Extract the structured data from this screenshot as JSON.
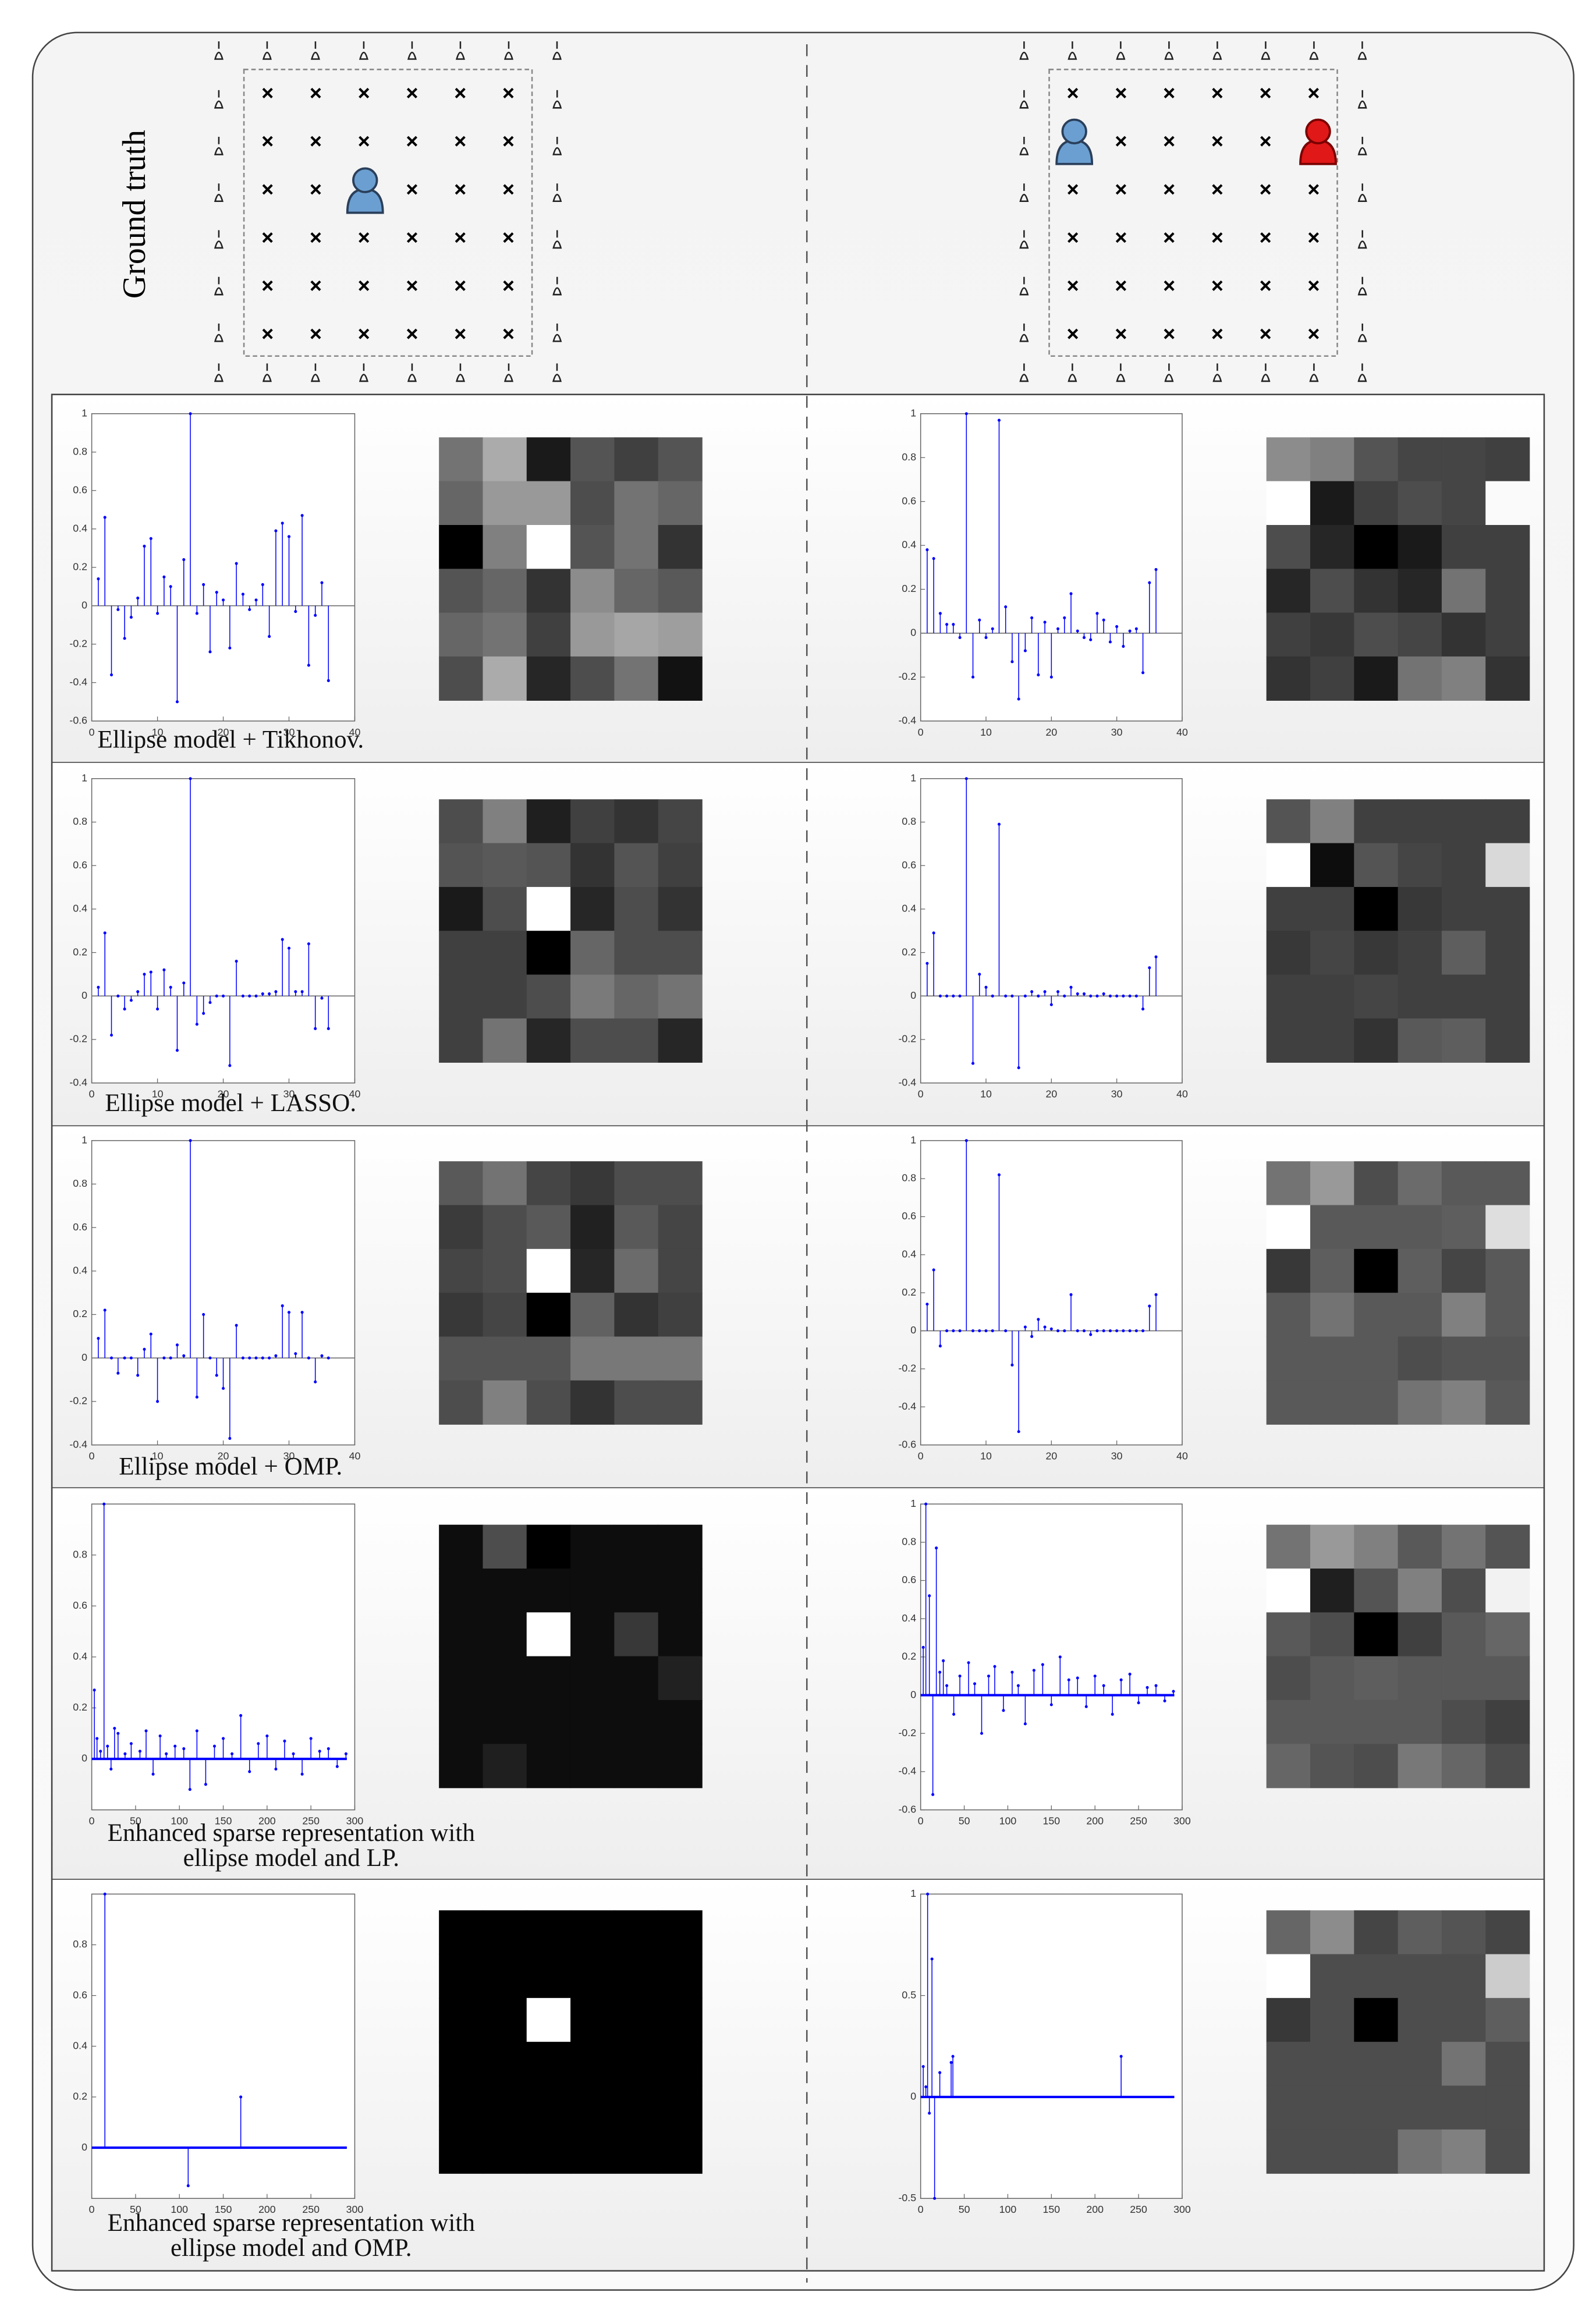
{
  "ground_truth": {
    "label": "Ground truth"
  },
  "captions": [
    [
      "Ellipse model + Tikhonov."
    ],
    [
      "Ellipse model + LASSO."
    ],
    [
      "Ellipse model + OMP."
    ],
    [
      "Enhanced sparse representation with",
      "ellipse model and LP."
    ],
    [
      "Enhanced sparse representation with",
      "ellipse model and OMP."
    ]
  ],
  "chart_data": [
    {
      "type": "stem",
      "color": "#0000ff",
      "xlim": [
        0,
        40
      ],
      "xticks": [
        0,
        10,
        20,
        30,
        40
      ],
      "ylim": [
        -0.6,
        1
      ],
      "yticks": [
        -0.6,
        -0.4,
        -0.2,
        0,
        0.2,
        0.4,
        0.6,
        0.8,
        1
      ],
      "x": [
        1,
        2,
        3,
        4,
        5,
        6,
        7,
        8,
        9,
        10,
        11,
        12,
        13,
        14,
        15,
        16,
        17,
        18,
        19,
        20,
        21,
        22,
        23,
        24,
        25,
        26,
        27,
        28,
        29,
        30,
        31,
        32,
        33,
        34,
        35,
        36
      ],
      "values": [
        0.14,
        0.46,
        -0.36,
        -0.02,
        -0.17,
        -0.06,
        0.04,
        0.31,
        0.35,
        -0.04,
        0.15,
        0.1,
        -0.5,
        0.24,
        1,
        -0.04,
        0.11,
        -0.24,
        0.07,
        0.03,
        -0.22,
        0.22,
        0.06,
        -0.02,
        0.03,
        0.11,
        -0.16,
        0.39,
        0.43,
        0.36,
        -0.03,
        0.47,
        -0.31,
        -0.05,
        0.12,
        -0.39
      ]
    },
    {
      "type": "heatmap",
      "values": [
        [
          0.45,
          0.67,
          0.1,
          0.33,
          0.25,
          0.33
        ],
        [
          0.4,
          0.6,
          0.6,
          0.3,
          0.45,
          0.4
        ],
        [
          0,
          0.5,
          1,
          0.33,
          0.45,
          0.2
        ],
        [
          0.33,
          0.4,
          0.2,
          0.55,
          0.4,
          0.35
        ],
        [
          0.4,
          0.45,
          0.25,
          0.6,
          0.65,
          0.62
        ],
        [
          0.3,
          0.67,
          0.15,
          0.3,
          0.45,
          0.07
        ]
      ]
    },
    {
      "type": "stem",
      "color": "#0000ff",
      "xlim": [
        0,
        40
      ],
      "xticks": [
        0,
        10,
        20,
        30,
        40
      ],
      "ylim": [
        -0.4,
        1
      ],
      "yticks": [
        -0.4,
        -0.2,
        0,
        0.2,
        0.4,
        0.6,
        0.8,
        1
      ],
      "x": [
        1,
        2,
        3,
        4,
        5,
        6,
        7,
        8,
        9,
        10,
        11,
        12,
        13,
        14,
        15,
        16,
        17,
        18,
        19,
        20,
        21,
        22,
        23,
        24,
        25,
        26,
        27,
        28,
        29,
        30,
        31,
        32,
        33,
        34,
        35,
        36
      ],
      "values": [
        0.38,
        0.34,
        0.09,
        0.04,
        0.04,
        -0.02,
        1,
        -0.2,
        0.06,
        -0.02,
        0.02,
        0.97,
        0.12,
        -0.13,
        -0.3,
        -0.08,
        0.07,
        -0.19,
        0.05,
        -0.2,
        0.02,
        0.07,
        0.18,
        0.01,
        -0.02,
        -0.03,
        0.09,
        0.06,
        -0.04,
        0.03,
        -0.06,
        0.01,
        0.02,
        -0.18,
        0.23,
        0.29
      ]
    },
    {
      "type": "heatmap",
      "values": [
        [
          0.55,
          0.5,
          0.33,
          0.27,
          0.27,
          0.25
        ],
        [
          1,
          0.1,
          0.25,
          0.3,
          0.27,
          0.98
        ],
        [
          0.3,
          0.15,
          0,
          0.1,
          0.25,
          0.25
        ],
        [
          0.15,
          0.3,
          0.2,
          0.15,
          0.45,
          0.25
        ],
        [
          0.25,
          0.22,
          0.3,
          0.27,
          0.2,
          0.25
        ],
        [
          0.2,
          0.25,
          0.1,
          0.45,
          0.5,
          0.2
        ]
      ]
    },
    {
      "type": "stem",
      "color": "#0000ff",
      "xlim": [
        0,
        40
      ],
      "xticks": [
        0,
        10,
        20,
        30,
        40
      ],
      "ylim": [
        -0.4,
        1
      ],
      "yticks": [
        -0.4,
        -0.2,
        0,
        0.2,
        0.4,
        0.6,
        0.8,
        1
      ],
      "x": [
        1,
        2,
        3,
        4,
        5,
        6,
        7,
        8,
        9,
        10,
        11,
        12,
        13,
        14,
        15,
        16,
        17,
        18,
        19,
        20,
        21,
        22,
        23,
        24,
        25,
        26,
        27,
        28,
        29,
        30,
        31,
        32,
        33,
        34,
        35,
        36
      ],
      "values": [
        0.04,
        0.29,
        -0.18,
        0,
        -0.06,
        -0.02,
        0.02,
        0.1,
        0.11,
        -0.06,
        0.12,
        0.04,
        -0.25,
        0.06,
        1,
        -0.13,
        -0.08,
        -0.03,
        0,
        0,
        -0.32,
        0.16,
        0,
        0,
        0,
        0.01,
        0.01,
        0.02,
        0.26,
        0.22,
        0.02,
        0.02,
        0.24,
        -0.15,
        -0.01,
        -0.15
      ]
    },
    {
      "type": "heatmap",
      "values": [
        [
          0.3,
          0.5,
          0.12,
          0.25,
          0.2,
          0.27
        ],
        [
          0.33,
          0.35,
          0.33,
          0.2,
          0.33,
          0.25
        ],
        [
          0.1,
          0.3,
          1,
          0.15,
          0.3,
          0.2
        ],
        [
          0.25,
          0.25,
          0,
          0.4,
          0.3,
          0.3
        ],
        [
          0.25,
          0.25,
          0.3,
          0.48,
          0.4,
          0.45
        ],
        [
          0.25,
          0.45,
          0.15,
          0.3,
          0.3,
          0.15
        ]
      ]
    },
    {
      "type": "stem",
      "color": "#0000ff",
      "xlim": [
        0,
        40
      ],
      "xticks": [
        0,
        10,
        20,
        30,
        40
      ],
      "ylim": [
        -0.4,
        1
      ],
      "yticks": [
        -0.4,
        -0.2,
        0,
        0.2,
        0.4,
        0.6,
        0.8,
        1
      ],
      "x": [
        1,
        2,
        3,
        4,
        5,
        6,
        7,
        8,
        9,
        10,
        11,
        12,
        13,
        14,
        15,
        16,
        17,
        18,
        19,
        20,
        21,
        22,
        23,
        24,
        25,
        26,
        27,
        28,
        29,
        30,
        31,
        32,
        33,
        34,
        35,
        36
      ],
      "values": [
        0.15,
        0.29,
        0,
        0,
        0,
        0,
        1,
        -0.31,
        0.1,
        0.04,
        0,
        0.79,
        0,
        0,
        -0.33,
        0,
        0.02,
        0,
        0.02,
        -0.04,
        0.02,
        0,
        0.04,
        0.01,
        0.01,
        0,
        0,
        0.01,
        0,
        0,
        0,
        0,
        0,
        -0.06,
        0.13,
        0.18
      ]
    },
    {
      "type": "heatmap",
      "values": [
        [
          0.33,
          0.5,
          0.25,
          0.25,
          0.25,
          0.25
        ],
        [
          1,
          0.05,
          0.33,
          0.27,
          0.25,
          0.85
        ],
        [
          0.25,
          0.25,
          0,
          0.22,
          0.25,
          0.25
        ],
        [
          0.22,
          0.27,
          0.22,
          0.25,
          0.37,
          0.25
        ],
        [
          0.25,
          0.25,
          0.27,
          0.25,
          0.25,
          0.25
        ],
        [
          0.25,
          0.25,
          0.2,
          0.35,
          0.37,
          0.25
        ]
      ]
    },
    {
      "type": "stem",
      "color": "#0000ff",
      "xlim": [
        0,
        40
      ],
      "xticks": [
        0,
        10,
        20,
        30,
        40
      ],
      "ylim": [
        -0.4,
        1
      ],
      "yticks": [
        -0.4,
        -0.2,
        0,
        0.2,
        0.4,
        0.6,
        0.8,
        1
      ],
      "x": [
        1,
        2,
        3,
        4,
        5,
        6,
        7,
        8,
        9,
        10,
        11,
        12,
        13,
        14,
        15,
        16,
        17,
        18,
        19,
        20,
        21,
        22,
        23,
        24,
        25,
        26,
        27,
        28,
        29,
        30,
        31,
        32,
        33,
        34,
        35,
        36
      ],
      "values": [
        0.09,
        0.22,
        0,
        -0.07,
        0,
        0,
        -0.08,
        0.04,
        0.11,
        -0.2,
        0,
        0,
        0.06,
        0.01,
        1,
        -0.18,
        0.2,
        0,
        -0.08,
        -0.14,
        -0.37,
        0.15,
        0,
        0,
        0,
        0,
        0,
        0.01,
        0.24,
        0.21,
        0.02,
        0.21,
        0,
        -0.11,
        0.01,
        0
      ]
    },
    {
      "type": "heatmap",
      "values": [
        [
          0.35,
          0.45,
          0.27,
          0.22,
          0.3,
          0.3
        ],
        [
          0.23,
          0.3,
          0.35,
          0.13,
          0.35,
          0.27
        ],
        [
          0.27,
          0.3,
          1,
          0.15,
          0.42,
          0.27
        ],
        [
          0.22,
          0.27,
          0,
          0.38,
          0.2,
          0.25
        ],
        [
          0.33,
          0.33,
          0.33,
          0.47,
          0.47,
          0.47
        ],
        [
          0.3,
          0.5,
          0.3,
          0.2,
          0.3,
          0.3
        ]
      ]
    },
    {
      "type": "stem",
      "color": "#0000ff",
      "xlim": [
        0,
        40
      ],
      "xticks": [
        0,
        10,
        20,
        30,
        40
      ],
      "ylim": [
        -0.6,
        1
      ],
      "yticks": [
        -0.6,
        -0.4,
        -0.2,
        0,
        0.2,
        0.4,
        0.6,
        0.8,
        1
      ],
      "x": [
        1,
        2,
        3,
        4,
        5,
        6,
        7,
        8,
        9,
        10,
        11,
        12,
        13,
        14,
        15,
        16,
        17,
        18,
        19,
        20,
        21,
        22,
        23,
        24,
        25,
        26,
        27,
        28,
        29,
        30,
        31,
        32,
        33,
        34,
        35,
        36
      ],
      "values": [
        0.14,
        0.32,
        -0.08,
        0,
        0,
        0,
        1,
        0,
        0,
        0,
        0,
        0.82,
        0,
        -0.18,
        -0.53,
        0.02,
        -0.03,
        0.06,
        0.02,
        0.01,
        0,
        0,
        0.19,
        0,
        0,
        -0.02,
        0,
        0,
        0,
        0,
        0,
        0,
        0,
        0,
        0.13,
        0.19
      ]
    },
    {
      "type": "heatmap",
      "values": [
        [
          0.45,
          0.6,
          0.3,
          0.42,
          0.35,
          0.35
        ],
        [
          1,
          0.35,
          0.35,
          0.35,
          0.37,
          0.87
        ],
        [
          0.22,
          0.37,
          0,
          0.37,
          0.27,
          0.35
        ],
        [
          0.35,
          0.45,
          0.35,
          0.35,
          0.5,
          0.35
        ],
        [
          0.35,
          0.35,
          0.35,
          0.3,
          0.33,
          0.33
        ],
        [
          0.35,
          0.35,
          0.35,
          0.45,
          0.5,
          0.35
        ]
      ]
    },
    {
      "type": "stem",
      "color": "#0000ff",
      "xlim": [
        0,
        300
      ],
      "xticks": [
        0,
        50,
        100,
        150,
        200,
        250,
        300
      ],
      "ylim": [
        -0.2,
        1
      ],
      "yticks": [
        0,
        0.2,
        0.4,
        0.6,
        0.8
      ],
      "x": [
        3,
        6,
        10,
        14,
        18,
        22,
        26,
        30,
        38,
        45,
        55,
        62,
        70,
        78,
        85,
        95,
        105,
        112,
        120,
        130,
        140,
        150,
        160,
        170,
        180,
        190,
        200,
        210,
        220,
        230,
        240,
        250,
        260,
        270,
        280,
        290
      ],
      "values": [
        0.27,
        0.08,
        0.03,
        1,
        0.05,
        -0.04,
        0.12,
        0.1,
        0.02,
        0.06,
        0.03,
        0.11,
        -0.06,
        0.09,
        0.02,
        0.05,
        0.04,
        -0.12,
        0.11,
        -0.1,
        0.05,
        0.08,
        0.02,
        0.17,
        -0.05,
        0.06,
        0.09,
        -0.04,
        0.07,
        0.02,
        -0.06,
        0.08,
        0.03,
        0.04,
        -0.03,
        0.02
      ]
    },
    {
      "type": "heatmap",
      "values": [
        [
          0.05,
          0.3,
          0,
          0.05,
          0.05,
          0.05
        ],
        [
          0.05,
          0.05,
          0.05,
          0.05,
          0.05,
          0.05
        ],
        [
          0.05,
          0.05,
          1,
          0.05,
          0.22,
          0.05
        ],
        [
          0.05,
          0.05,
          0.05,
          0.05,
          0.05,
          0.13
        ],
        [
          0.05,
          0.05,
          0.05,
          0.05,
          0.05,
          0.05
        ],
        [
          0.05,
          0.12,
          0.05,
          0.05,
          0.05,
          0.05
        ]
      ]
    },
    {
      "type": "stem",
      "color": "#0000ff",
      "xlim": [
        0,
        300
      ],
      "xticks": [
        0,
        50,
        100,
        150,
        200,
        250,
        300
      ],
      "ylim": [
        -0.6,
        1
      ],
      "yticks": [
        -0.6,
        -0.4,
        -0.2,
        0,
        0.2,
        0.4,
        0.6,
        0.8,
        1
      ],
      "x": [
        3,
        6,
        10,
        14,
        18,
        22,
        26,
        30,
        38,
        45,
        55,
        62,
        70,
        78,
        85,
        95,
        105,
        112,
        120,
        130,
        140,
        150,
        160,
        170,
        180,
        190,
        200,
        210,
        220,
        230,
        240,
        250,
        260,
        270,
        280,
        290
      ],
      "values": [
        0.25,
        1,
        0.52,
        -0.52,
        0.77,
        0.12,
        0.18,
        0.05,
        -0.1,
        0.1,
        0.17,
        0.06,
        -0.2,
        0.1,
        0.15,
        -0.08,
        0.12,
        0.05,
        -0.15,
        0.13,
        0.16,
        -0.05,
        0.2,
        0.08,
        0.09,
        -0.06,
        0.1,
        0.05,
        -0.1,
        0.08,
        0.11,
        -0.04,
        0.04,
        0.05,
        -0.03,
        0.02
      ]
    },
    {
      "type": "heatmap",
      "values": [
        [
          0.45,
          0.6,
          0.5,
          0.35,
          0.45,
          0.33
        ],
        [
          1,
          0.12,
          0.33,
          0.5,
          0.3,
          0.95
        ],
        [
          0.35,
          0.3,
          0,
          0.25,
          0.35,
          0.4
        ],
        [
          0.3,
          0.35,
          0.37,
          0.35,
          0.35,
          0.35
        ],
        [
          0.35,
          0.35,
          0.35,
          0.35,
          0.3,
          0.25
        ],
        [
          0.4,
          0.33,
          0.3,
          0.47,
          0.4,
          0.3
        ]
      ]
    },
    {
      "type": "stem",
      "color": "#0000ff",
      "xlim": [
        0,
        300
      ],
      "xticks": [
        0,
        50,
        100,
        150,
        200,
        250,
        300
      ],
      "ylim": [
        -0.2,
        1
      ],
      "yticks": [
        0,
        0.2,
        0.4,
        0.6,
        0.8
      ],
      "x": [
        15,
        110,
        170
      ],
      "values": [
        1,
        -0.15,
        0.2
      ]
    },
    {
      "type": "heatmap",
      "values": [
        [
          0,
          0,
          0,
          0,
          0,
          0
        ],
        [
          0,
          0,
          0,
          0,
          0,
          0
        ],
        [
          0,
          0,
          1,
          0,
          0,
          0
        ],
        [
          0,
          0,
          0,
          0,
          0,
          0
        ],
        [
          0,
          0,
          0,
          0,
          0,
          0
        ],
        [
          0,
          0,
          0,
          0,
          0,
          0
        ]
      ]
    },
    {
      "type": "stem",
      "color": "#0000ff",
      "xlim": [
        0,
        300
      ],
      "xticks": [
        0,
        50,
        100,
        150,
        200,
        250,
        300
      ],
      "ylim": [
        -0.5,
        1
      ],
      "yticks": [
        -0.5,
        0,
        0.5,
        1
      ],
      "x": [
        3,
        6,
        8,
        10,
        13,
        16,
        22,
        35,
        37,
        230
      ],
      "values": [
        0.15,
        0.05,
        1,
        -0.08,
        0.68,
        -0.5,
        0.12,
        0.17,
        0.2,
        0.2
      ]
    },
    {
      "type": "heatmap",
      "values": [
        [
          0.4,
          0.55,
          0.27,
          0.37,
          0.33,
          0.27
        ],
        [
          1,
          0.3,
          0.3,
          0.3,
          0.3,
          0.8
        ],
        [
          0.22,
          0.3,
          0,
          0.3,
          0.3,
          0.37
        ],
        [
          0.3,
          0.3,
          0.3,
          0.3,
          0.45,
          0.3
        ],
        [
          0.3,
          0.3,
          0.3,
          0.3,
          0.3,
          0.3
        ],
        [
          0.3,
          0.3,
          0.3,
          0.45,
          0.5,
          0.3
        ]
      ]
    }
  ]
}
